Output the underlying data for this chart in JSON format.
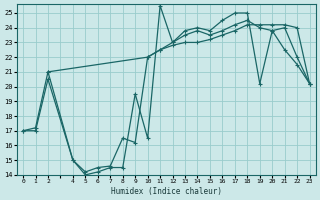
{
  "xlabel": "Humidex (Indice chaleur)",
  "bg_color": "#cce8e8",
  "grid_color": "#99cccc",
  "line_color": "#1a6666",
  "xlim": [
    -0.5,
    23.5
  ],
  "ylim": [
    14,
    25.6
  ],
  "yticks": [
    14,
    15,
    16,
    17,
    18,
    19,
    20,
    21,
    22,
    23,
    24,
    25
  ],
  "xtick_positions": [
    0,
    1,
    2,
    3,
    4,
    5,
    6,
    7,
    8,
    9,
    10,
    11,
    12,
    13,
    14,
    15,
    16,
    17,
    18,
    19,
    20,
    21,
    22,
    23
  ],
  "xtick_labels": [
    "0",
    "1",
    "2",
    "",
    "4",
    "5",
    "6",
    "7",
    "8",
    "9",
    "10",
    "11",
    "12",
    "13",
    "14",
    "15",
    "16",
    "17",
    "18",
    "19",
    "20",
    "21",
    "22",
    "23"
  ],
  "series1_x": [
    0,
    1,
    2,
    4,
    5,
    6,
    7,
    8,
    9,
    10,
    11,
    12,
    13,
    14,
    15,
    16,
    17,
    18,
    19,
    20,
    21,
    22,
    23
  ],
  "series1_y": [
    17.0,
    17.0,
    20.5,
    15.0,
    14.0,
    14.2,
    14.5,
    14.5,
    19.5,
    16.5,
    25.5,
    23.0,
    23.8,
    24.0,
    23.8,
    24.5,
    25.0,
    25.0,
    20.2,
    23.8,
    22.5,
    21.5,
    20.2
  ],
  "series2_x": [
    0,
    1,
    2,
    4,
    5,
    6,
    7,
    8,
    9,
    10,
    11,
    12,
    13,
    14,
    15,
    16,
    17,
    18,
    19,
    20,
    21,
    22,
    23
  ],
  "series2_y": [
    17.0,
    17.2,
    21.0,
    15.0,
    14.2,
    14.5,
    14.6,
    16.5,
    16.2,
    22.0,
    22.5,
    23.0,
    23.5,
    23.8,
    23.5,
    23.8,
    24.2,
    24.5,
    24.0,
    23.8,
    24.0,
    22.0,
    20.2
  ],
  "series3_x": [
    2,
    10,
    11,
    12,
    13,
    14,
    15,
    16,
    17,
    18,
    19,
    20,
    21,
    22,
    23
  ],
  "series3_y": [
    21.0,
    22.0,
    22.5,
    22.8,
    23.0,
    23.0,
    23.2,
    23.5,
    23.8,
    24.2,
    24.2,
    24.2,
    24.2,
    24.0,
    20.2
  ]
}
